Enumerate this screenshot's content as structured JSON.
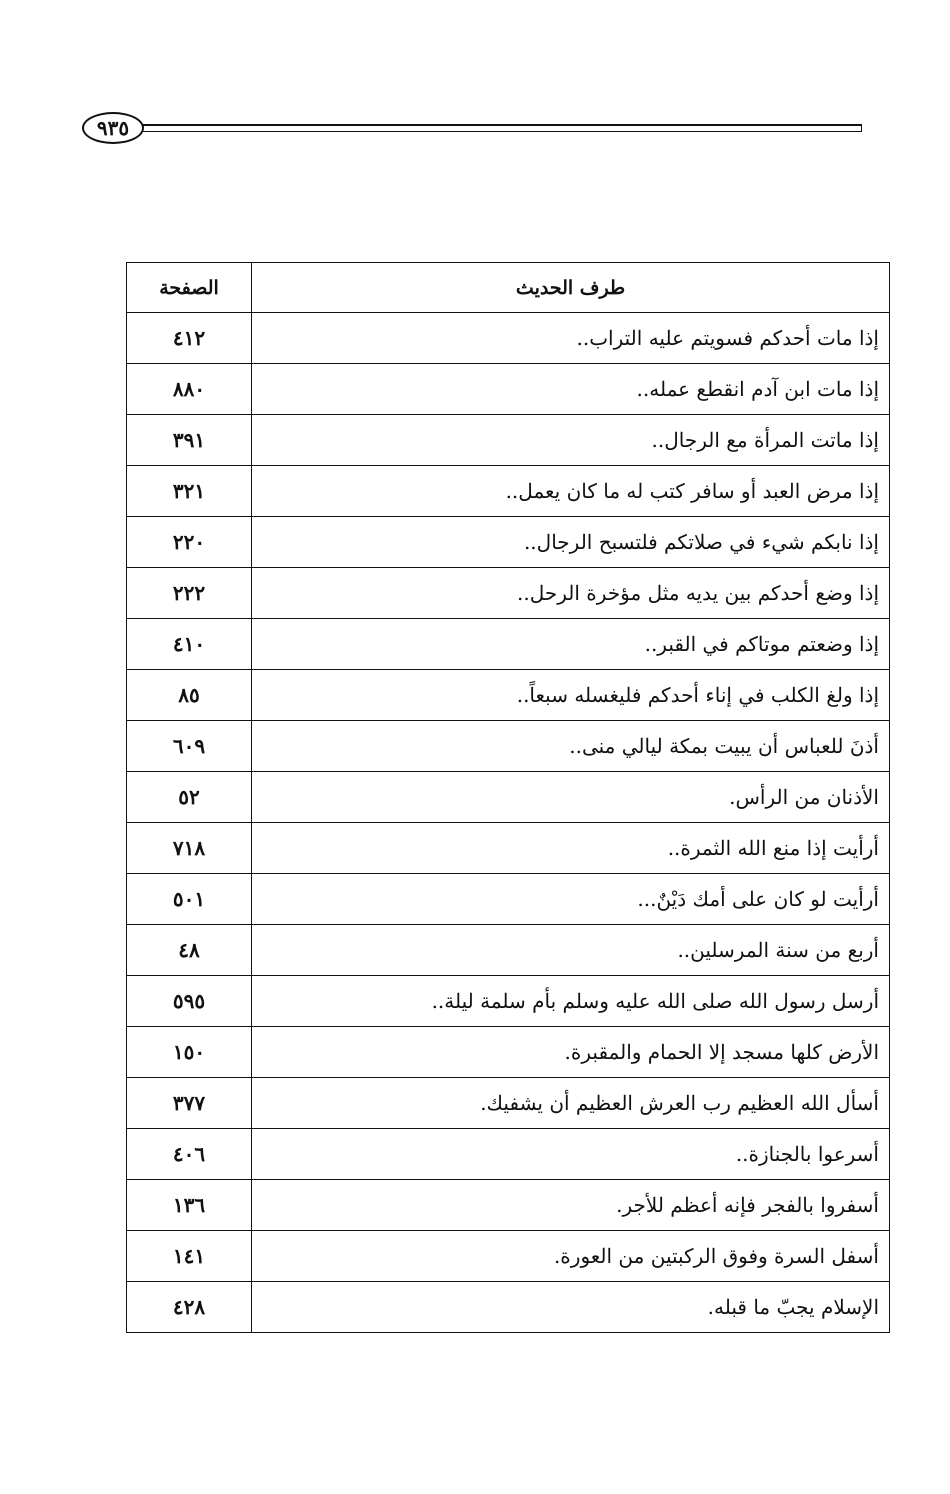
{
  "page_number": "٩٣٥",
  "table": {
    "headers": {
      "text": "طرف الحديث",
      "page": "الصفحة"
    },
    "rows": [
      {
        "text": "إذا مات أحدكم فسويتم عليه التراب..",
        "page": "٤١٢"
      },
      {
        "text": "إذا مات ابن آدم انقطع عمله..",
        "page": "٨٨٠"
      },
      {
        "text": "إذا ماتت المرأة مع الرجال..",
        "page": "٣٩١"
      },
      {
        "text": "إذا مرض العبد أو سافر كتب له ما كان يعمل..",
        "page": "٣٢١"
      },
      {
        "text": "إذا نابكم شيء في صلاتكم فلتسبح الرجال..",
        "page": "٢٢٠"
      },
      {
        "text": "إذا وضع أحدكم بين يديه مثل مؤخرة الرحل..",
        "page": "٢٢٢"
      },
      {
        "text": "إذا وضعتم موتاكم في القبر..",
        "page": "٤١٠"
      },
      {
        "text": "إذا ولغ الكلب في إناء أحدكم فليغسله سبعاً..",
        "page": "٨٥"
      },
      {
        "text": "أذنَ للعباس أن يبيت بمكة ليالي منى..",
        "page": "٦٠٩"
      },
      {
        "text": "الأذنان من الرأس.",
        "page": "٥٢"
      },
      {
        "text": "أرأيت إذا منع الله الثمرة..",
        "page": "٧١٨"
      },
      {
        "text": "أرأيت لو كان على أمك دَيْنٌ...",
        "page": "٥٠١"
      },
      {
        "text": "أربع من سنة المرسلين..",
        "page": "٤٨"
      },
      {
        "text": "أرسل رسول الله صلى الله عليه وسلم بأم سلمة ليلة..",
        "page": "٥٩٥"
      },
      {
        "text": "الأرض كلها مسجد إلا الحمام والمقبرة.",
        "page": "١٥٠"
      },
      {
        "text": "أسأل الله العظيم رب العرش العظيم أن يشفيك.",
        "page": "٣٧٧"
      },
      {
        "text": "أسرعوا بالجنازة..",
        "page": "٤٠٦"
      },
      {
        "text": "أسفروا بالفجر فإنه أعظم للأجر.",
        "page": "١٣٦"
      },
      {
        "text": "أسفل السرة وفوق الركبتين من العورة.",
        "page": "١٤١"
      },
      {
        "text": "الإسلام يجبّ ما قبله.",
        "page": "٤٢٨"
      }
    ]
  }
}
